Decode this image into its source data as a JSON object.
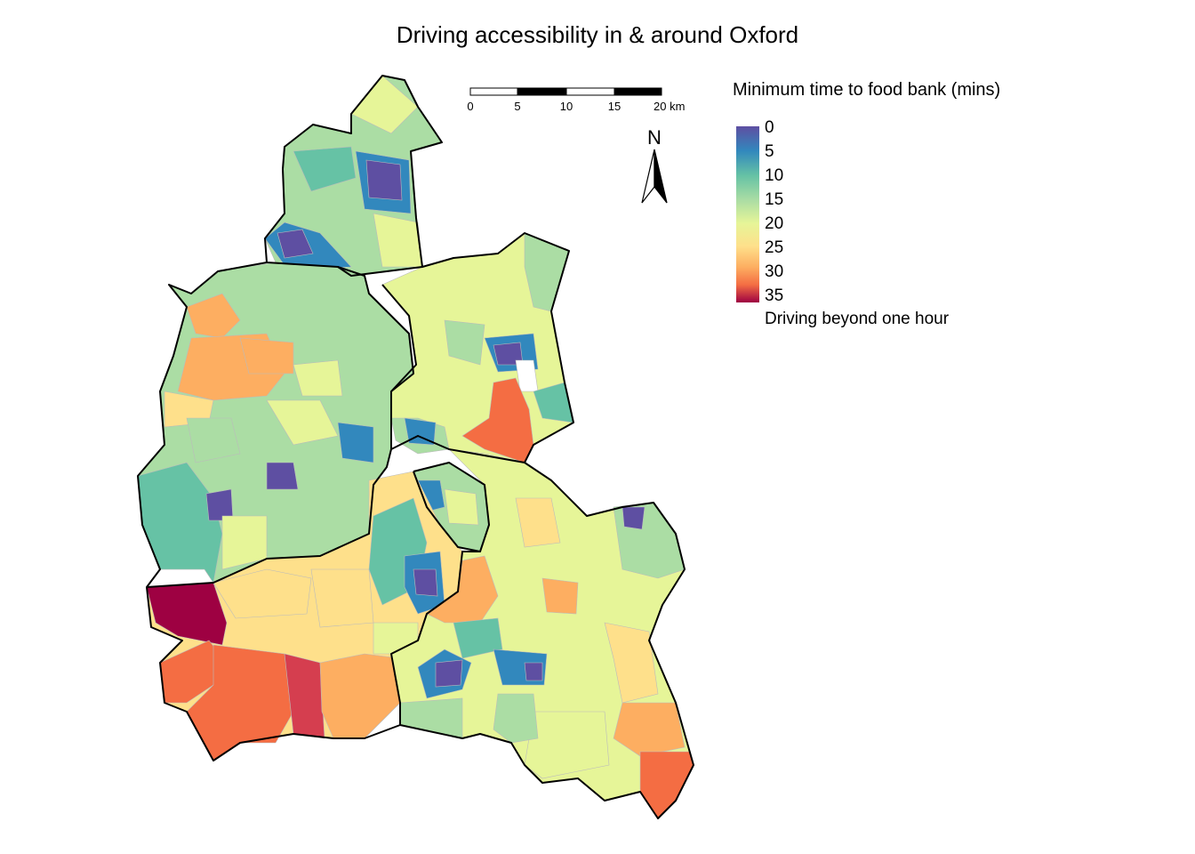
{
  "title": "Driving accessibility in & around Oxford",
  "legend": {
    "title": "Minimum time to food bank (mins)",
    "ticks": [
      "0",
      "5",
      "10",
      "15",
      "20",
      "25",
      "30",
      "35"
    ],
    "na_label": "Driving beyond one hour",
    "palette": [
      "#5e4fa2",
      "#3288bd",
      "#66c2a5",
      "#abdda4",
      "#e6f598",
      "#fee08b",
      "#fdae61",
      "#f46d43",
      "#d53e4f",
      "#9e0142"
    ]
  },
  "scalebar": {
    "labels": [
      "0",
      "5",
      "10",
      "15",
      "20 km"
    ]
  },
  "north_arrow": {
    "label": "N"
  },
  "colors": {
    "na_fill": "#ffffff",
    "boundary": "#000000",
    "inner_lines": "#bbbbbb"
  }
}
